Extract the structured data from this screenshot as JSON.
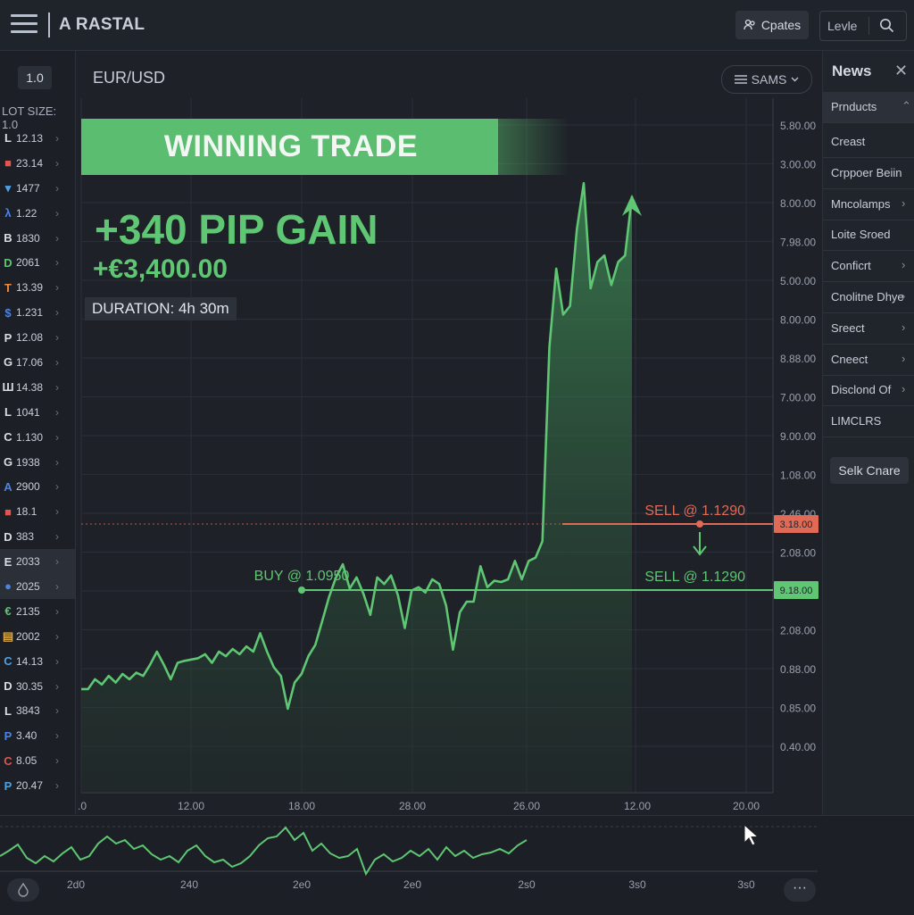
{
  "header": {
    "brand": "A RASTAL",
    "updates_label": "Cpates",
    "search_label": "Levle",
    "menu_icon": "hamburger-icon",
    "search_icon": "search-icon"
  },
  "left_panel": {
    "lot_button": "1.0",
    "lot_size": "LOT SIZE: 1.0",
    "watchlist": [
      {
        "symbol": "L",
        "value": "12.13",
        "color": "#d9dde4"
      },
      {
        "symbol": "■",
        "value": "23.14",
        "color": "#e0554f"
      },
      {
        "symbol": "▾",
        "value": "1477",
        "color": "#4ba3e6"
      },
      {
        "symbol": "λ",
        "value": "1.22",
        "color": "#4b84e6"
      },
      {
        "symbol": "B",
        "value": "1830",
        "color": "#d9dde4"
      },
      {
        "symbol": "D",
        "value": "2061",
        "color": "#5fc673"
      },
      {
        "symbol": "T",
        "value": "13.39",
        "color": "#f08a3c"
      },
      {
        "symbol": "$",
        "value": "1.231",
        "color": "#4b84e6"
      },
      {
        "symbol": "P",
        "value": "12.08",
        "color": "#d9dde4"
      },
      {
        "symbol": "G",
        "value": "17.06",
        "color": "#d9dde4"
      },
      {
        "symbol": "Ш",
        "value": "14.38",
        "color": "#d9dde4"
      },
      {
        "symbol": "L",
        "value": "1041",
        "color": "#d9dde4"
      },
      {
        "symbol": "C",
        "value": "1.130",
        "color": "#d9dde4"
      },
      {
        "symbol": "G",
        "value": "1938",
        "color": "#d9dde4"
      },
      {
        "symbol": "A",
        "value": "2900",
        "color": "#4b84e6"
      },
      {
        "symbol": "■",
        "value": "18.1",
        "color": "#e0554f"
      },
      {
        "symbol": "D",
        "value": "383",
        "color": "#d9dde4"
      },
      {
        "symbol": "E",
        "value": "2033",
        "color": "#d9dde4"
      },
      {
        "symbol": "●",
        "value": "2025",
        "color": "#4b84e6"
      },
      {
        "symbol": "€",
        "value": "2135",
        "color": "#5fc673"
      },
      {
        "symbol": "▤",
        "value": "2002",
        "color": "#d8a84a"
      },
      {
        "symbol": "C",
        "value": "14.13",
        "color": "#4ba3e6"
      },
      {
        "symbol": "D",
        "value": "30.35",
        "color": "#d9dde4"
      },
      {
        "symbol": "L",
        "value": "3843",
        "color": "#d9dde4"
      },
      {
        "symbol": "P",
        "value": "3.40",
        "color": "#4b84e6"
      },
      {
        "symbol": "C",
        "value": "8.05",
        "color": "#e0554f"
      },
      {
        "symbol": "P",
        "value": "20.47",
        "color": "#4ba3e6"
      }
    ]
  },
  "chart": {
    "pair": "EUR/USD",
    "timeframe_label": "SAMS",
    "banner": "WINNING TRADE",
    "pip_gain": "+340 PIP GAIN",
    "profit": "+€3,400.00",
    "duration": "DURATION: 4h 30m",
    "buy_label": "BUY @ 1.0950",
    "sell_label_top": "SELL @ 1.1290",
    "sell_label": "SELL @ 1.1290",
    "colors": {
      "up": "#5fc673",
      "sell": "#e06a55"
    }
  },
  "chart_data": {
    "type": "line",
    "x_ticks": [
      ".0",
      "12.00",
      "18.00",
      "28.00",
      "26.00",
      "12.00",
      "20.00"
    ],
    "y_ticks": [
      "5.80.00",
      "3.00.00",
      "8.00.00",
      "7.98.00",
      "5.00.00",
      "8.00.00",
      "8.88.00",
      "7.00.00",
      "9.00.00",
      "1.08.00",
      "2.46.00",
      "2.08.00",
      "2.86.00",
      "2.08.00",
      "0.88.00",
      "0.85.00",
      "0.40.00"
    ],
    "price_tags": [
      {
        "label": "3.18.00",
        "kind": "sell"
      },
      {
        "label": "9.18.00",
        "kind": "buy"
      }
    ],
    "series": [
      {
        "values": [
          1.0755,
          1.0755,
          1.077,
          1.0762,
          1.0775,
          1.0765,
          1.0778,
          1.077,
          1.078,
          1.0775,
          1.0792,
          1.0812,
          1.0792,
          1.077,
          1.0795,
          1.0798,
          1.08,
          1.0802,
          1.0808,
          1.0795,
          1.0812,
          1.0805,
          1.0816,
          1.0808,
          1.082,
          1.0812,
          1.084,
          1.0812,
          1.0788,
          1.0775,
          1.0725,
          1.0765,
          1.0778,
          1.0805,
          1.0822,
          1.0858,
          1.0895,
          1.0925,
          1.0945,
          1.0908,
          1.0925,
          1.09,
          1.0868,
          1.0925,
          1.0915,
          1.0928,
          1.0898,
          1.0848,
          1.0905,
          1.091,
          1.0902,
          1.0922,
          1.0915,
          1.0882,
          1.0815,
          1.0872,
          1.0888,
          1.0888,
          1.0942,
          1.091,
          1.092,
          1.0918,
          1.0922,
          1.095,
          1.0922,
          1.095,
          1.0955,
          1.098,
          1.1275,
          1.1395,
          1.1325,
          1.1338,
          1.1455,
          1.1525,
          1.1365,
          1.1405,
          1.1415,
          1.137,
          1.1405,
          1.1415,
          1.1505
        ]
      }
    ]
  },
  "news": {
    "title": "News",
    "items": [
      {
        "label": "Prnducts",
        "chev": "⌃",
        "highlight": true
      },
      {
        "label": "Creast",
        "chev": "",
        "highlight": false
      },
      {
        "label": "Crppoer Beiin",
        "chev": "",
        "highlight": false
      },
      {
        "label": "Mncolamps",
        "chev": "›",
        "highlight": false
      },
      {
        "label": "Loite Sroed",
        "chev": "",
        "highlight": false
      },
      {
        "label": "Conficrt",
        "chev": "›",
        "highlight": false
      },
      {
        "label": "Cnolitne Dhye",
        "chev": "›",
        "highlight": false
      },
      {
        "label": "Sreect",
        "chev": "›",
        "highlight": false
      },
      {
        "label": "Cneect",
        "chev": "›",
        "highlight": false
      },
      {
        "label": "Disclond Of",
        "chev": "›",
        "highlight": false
      },
      {
        "label": "LIMCLRS",
        "chev": "",
        "highlight": false
      }
    ],
    "button": "Selk Cnare"
  },
  "footer": {
    "x_ticks": [
      "2d0",
      "240",
      "2e0",
      "2e0",
      "2s0",
      "3s0",
      "3s0"
    ],
    "more_label": "···"
  }
}
